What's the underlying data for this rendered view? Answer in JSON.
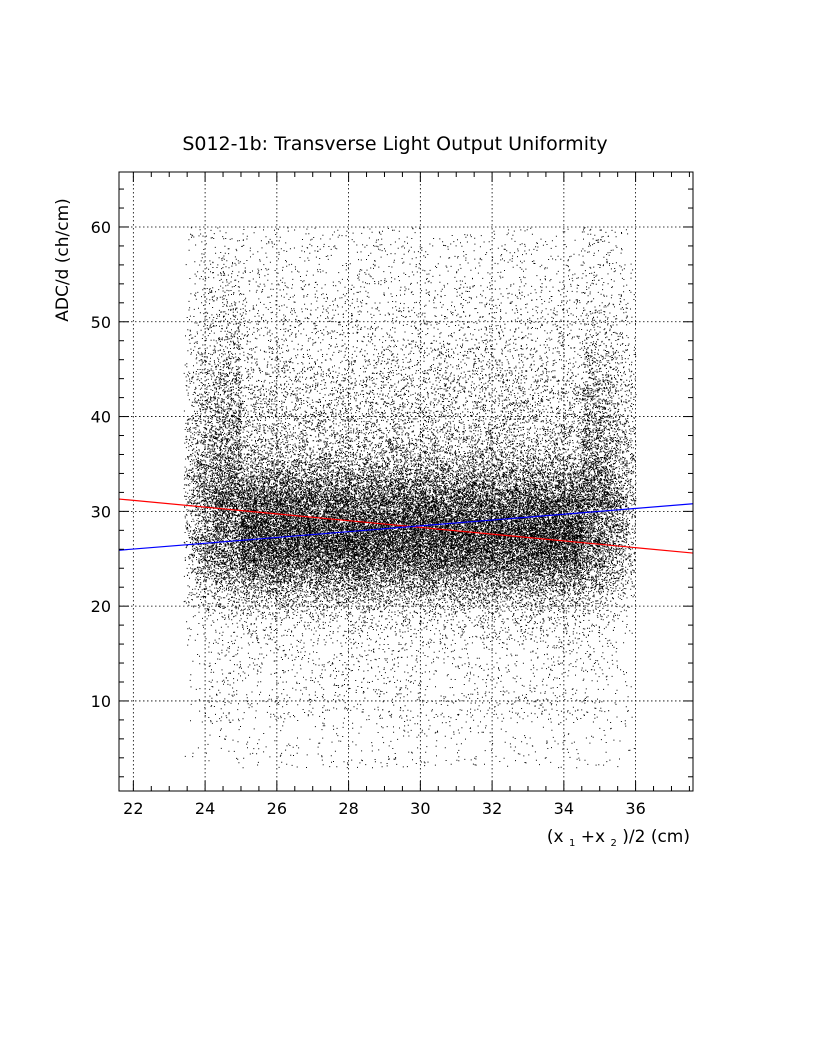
{
  "chart_data": {
    "type": "scatter",
    "title": "S012-1b: Transverse Light Output Uniformity",
    "xlabel": "(x1+x2)/2 (cm)",
    "xlabel_parts": {
      "open": "(x",
      "sub1": "1",
      "plus": "+x",
      "sub2": "2",
      "close": ")/2 (cm)"
    },
    "ylabel": "ADC/d (ch/cm)",
    "xlim": [
      21.6,
      37.6
    ],
    "ylim": [
      0.5,
      65.8
    ],
    "xticks": [
      22,
      24,
      26,
      28,
      30,
      32,
      34,
      36
    ],
    "yticks": [
      10,
      20,
      30,
      40,
      50,
      60
    ],
    "xtick_labels": [
      "22",
      "24",
      "26",
      "28",
      "30",
      "32",
      "34",
      "36"
    ],
    "ytick_labels": [
      "10",
      "20",
      "30",
      "40",
      "50",
      "60"
    ],
    "grid": true,
    "point_color": "#000000",
    "point_count_estimate": 60000,
    "density_model": {
      "x_range": [
        23.4,
        36.0
      ],
      "core_y_center": 27.5,
      "core_y_halfwidth": 4.0,
      "y_max": 60.0
    },
    "fit_lines": [
      {
        "color": "#ff0000",
        "x": [
          21.6,
          37.6
        ],
        "y": [
          31.3,
          25.6
        ]
      },
      {
        "color": "#0000ff",
        "x": [
          21.6,
          37.6
        ],
        "y": [
          25.9,
          30.8
        ]
      }
    ]
  }
}
